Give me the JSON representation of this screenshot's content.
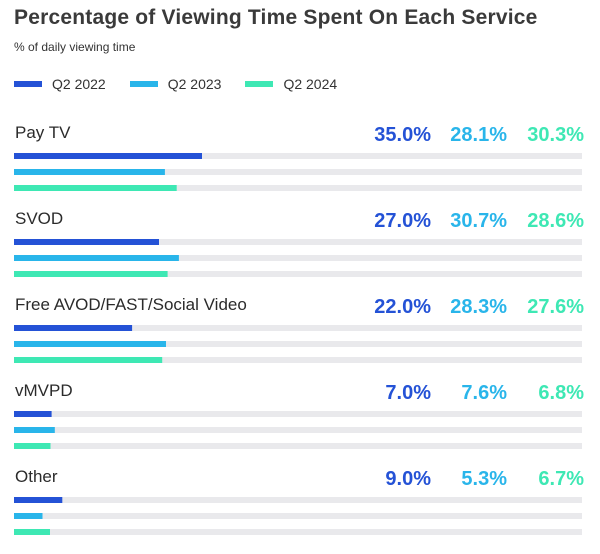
{
  "title": "Percentage of Viewing Time Spent On Each Service",
  "subtitle": "% of daily viewing time",
  "colors": {
    "q2_2022": "#2452d6",
    "q2_2023": "#29b5ea",
    "q2_2024": "#3ee8b4",
    "track": "#e9e9ec"
  },
  "legend": [
    {
      "label": "Q2 2022",
      "color": "#2452d6"
    },
    {
      "label": "Q2 2023",
      "color": "#29b5ea"
    },
    {
      "label": "Q2 2024",
      "color": "#3ee8b4"
    }
  ],
  "chart_data": {
    "type": "bar",
    "orientation": "horizontal",
    "title": "Percentage of Viewing Time Spent On Each Service",
    "subtitle": "% of daily viewing time",
    "categories": [
      "Pay TV",
      "SVOD",
      "Free AVOD/FAST/Social Video",
      "vMVPD",
      "Other"
    ],
    "series": [
      {
        "name": "Q2 2022",
        "color": "#2452d6",
        "values": [
          35.0,
          27.0,
          22.0,
          7.0,
          9.0
        ],
        "labels": [
          "35.0%",
          "27.0%",
          "22.0%",
          "7.0%",
          "9.0%"
        ]
      },
      {
        "name": "Q2 2023",
        "color": "#29b5ea",
        "values": [
          28.1,
          30.7,
          28.3,
          7.6,
          5.3
        ],
        "labels": [
          "28.1%",
          "30.7%",
          "28.3%",
          "7.6%",
          "5.3%"
        ]
      },
      {
        "name": "Q2 2024",
        "color": "#3ee8b4",
        "values": [
          30.3,
          28.6,
          27.6,
          6.8,
          6.7
        ],
        "labels": [
          "30.3%",
          "28.6%",
          "27.6%",
          "6.8%",
          "6.7%"
        ]
      }
    ],
    "xlim": [
      0,
      100
    ],
    "grid": false,
    "legend_position": "top-left"
  }
}
